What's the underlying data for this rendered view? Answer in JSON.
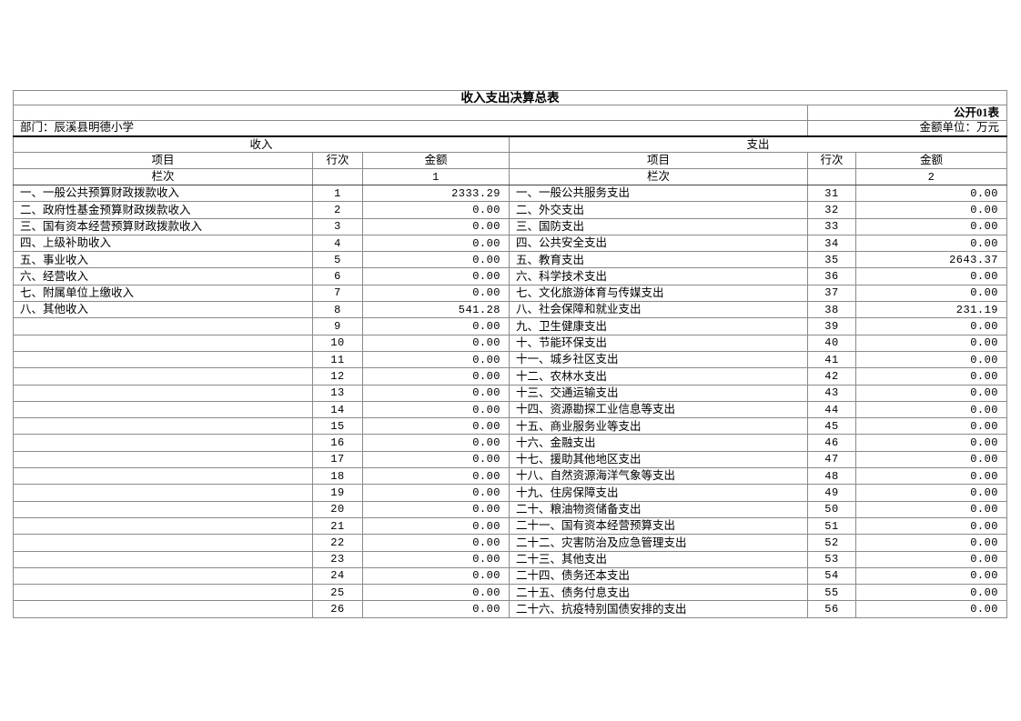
{
  "header": {
    "title": "收入支出决算总表",
    "table_code": "公开01表",
    "department_label": "部门：辰溪县明德小学",
    "unit_label": "金额单位：万元"
  },
  "columns": {
    "item": "项目",
    "line_no": "行次",
    "amount": "金额",
    "lanci": "栏次"
  },
  "income": {
    "section_title": "收入",
    "column_index": "1",
    "rows": [
      {
        "item": "一、一般公共预算财政拨款收入",
        "line": "1",
        "amount": "2333.29"
      },
      {
        "item": "二、政府性基金预算财政拨款收入",
        "line": "2",
        "amount": "0.00"
      },
      {
        "item": "三、国有资本经营预算财政拨款收入",
        "line": "3",
        "amount": "0.00"
      },
      {
        "item": "四、上级补助收入",
        "line": "4",
        "amount": "0.00"
      },
      {
        "item": "五、事业收入",
        "line": "5",
        "amount": "0.00"
      },
      {
        "item": "六、经营收入",
        "line": "6",
        "amount": "0.00"
      },
      {
        "item": "七、附属单位上缴收入",
        "line": "7",
        "amount": "0.00"
      },
      {
        "item": "八、其他收入",
        "line": "8",
        "amount": "541.28"
      },
      {
        "item": "",
        "line": "9",
        "amount": "0.00"
      },
      {
        "item": "",
        "line": "10",
        "amount": "0.00"
      },
      {
        "item": "",
        "line": "11",
        "amount": "0.00"
      },
      {
        "item": "",
        "line": "12",
        "amount": "0.00"
      },
      {
        "item": "",
        "line": "13",
        "amount": "0.00"
      },
      {
        "item": "",
        "line": "14",
        "amount": "0.00"
      },
      {
        "item": "",
        "line": "15",
        "amount": "0.00"
      },
      {
        "item": "",
        "line": "16",
        "amount": "0.00"
      },
      {
        "item": "",
        "line": "17",
        "amount": "0.00"
      },
      {
        "item": "",
        "line": "18",
        "amount": "0.00"
      },
      {
        "item": "",
        "line": "19",
        "amount": "0.00"
      },
      {
        "item": "",
        "line": "20",
        "amount": "0.00"
      },
      {
        "item": "",
        "line": "21",
        "amount": "0.00"
      },
      {
        "item": "",
        "line": "22",
        "amount": "0.00"
      },
      {
        "item": "",
        "line": "23",
        "amount": "0.00"
      },
      {
        "item": "",
        "line": "24",
        "amount": "0.00"
      },
      {
        "item": "",
        "line": "25",
        "amount": "0.00"
      },
      {
        "item": "",
        "line": "26",
        "amount": "0.00"
      }
    ]
  },
  "expense": {
    "section_title": "支出",
    "column_index": "2",
    "rows": [
      {
        "item": "一、一般公共服务支出",
        "line": "31",
        "amount": "0.00"
      },
      {
        "item": "二、外交支出",
        "line": "32",
        "amount": "0.00"
      },
      {
        "item": "三、国防支出",
        "line": "33",
        "amount": "0.00"
      },
      {
        "item": "四、公共安全支出",
        "line": "34",
        "amount": "0.00"
      },
      {
        "item": "五、教育支出",
        "line": "35",
        "amount": "2643.37"
      },
      {
        "item": "六、科学技术支出",
        "line": "36",
        "amount": "0.00"
      },
      {
        "item": "七、文化旅游体育与传媒支出",
        "line": "37",
        "amount": "0.00"
      },
      {
        "item": "八、社会保障和就业支出",
        "line": "38",
        "amount": "231.19"
      },
      {
        "item": "九、卫生健康支出",
        "line": "39",
        "amount": "0.00"
      },
      {
        "item": "十、节能环保支出",
        "line": "40",
        "amount": "0.00"
      },
      {
        "item": "十一、城乡社区支出",
        "line": "41",
        "amount": "0.00"
      },
      {
        "item": "十二、农林水支出",
        "line": "42",
        "amount": "0.00"
      },
      {
        "item": "十三、交通运输支出",
        "line": "43",
        "amount": "0.00"
      },
      {
        "item": "十四、资源勘探工业信息等支出",
        "line": "44",
        "amount": "0.00"
      },
      {
        "item": "十五、商业服务业等支出",
        "line": "45",
        "amount": "0.00"
      },
      {
        "item": "十六、金融支出",
        "line": "46",
        "amount": "0.00"
      },
      {
        "item": "十七、援助其他地区支出",
        "line": "47",
        "amount": "0.00"
      },
      {
        "item": "十八、自然资源海洋气象等支出",
        "line": "48",
        "amount": "0.00"
      },
      {
        "item": "十九、住房保障支出",
        "line": "49",
        "amount": "0.00"
      },
      {
        "item": "二十、粮油物资储备支出",
        "line": "50",
        "amount": "0.00"
      },
      {
        "item": "二十一、国有资本经营预算支出",
        "line": "51",
        "amount": "0.00"
      },
      {
        "item": "二十二、灾害防治及应急管理支出",
        "line": "52",
        "amount": "0.00"
      },
      {
        "item": "二十三、其他支出",
        "line": "53",
        "amount": "0.00"
      },
      {
        "item": "二十四、债务还本支出",
        "line": "54",
        "amount": "0.00"
      },
      {
        "item": "二十五、债务付息支出",
        "line": "55",
        "amount": "0.00"
      },
      {
        "item": "二十六、抗疫特别国债安排的支出",
        "line": "56",
        "amount": "0.00"
      }
    ]
  }
}
